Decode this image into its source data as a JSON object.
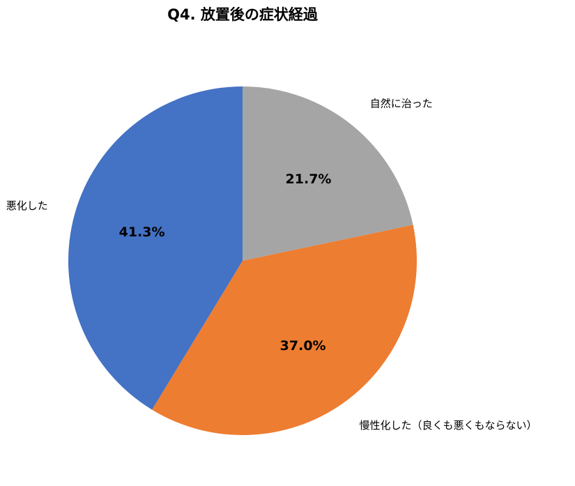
{
  "chart_data": {
    "type": "pie",
    "title": "Q4. 放置後の症状経過",
    "categories": [
      "自然に治った",
      "慢性化した（良くも悪くもならない）",
      "悪化した"
    ],
    "values": [
      21.7,
      37.0,
      41.3
    ],
    "value_labels": [
      "21.7%",
      "37.0%",
      "41.3%"
    ],
    "colors": [
      "#a5a5a5",
      "#ed7d31",
      "#4472c4"
    ]
  }
}
